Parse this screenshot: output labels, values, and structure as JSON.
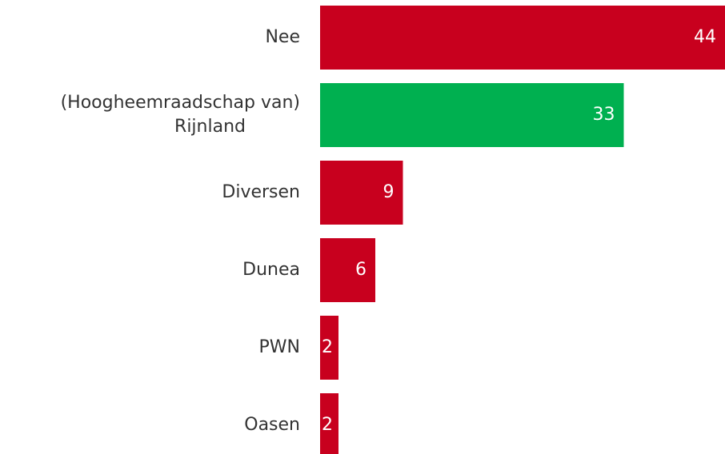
{
  "chart_data": {
    "type": "hbar",
    "categories": [
      "Nee",
      "(Hoogheemraadschap van)\nRijnland",
      "Diversen",
      "Dunea",
      "PWN",
      "Oasen"
    ],
    "values": [
      44,
      33,
      9,
      6,
      2,
      2
    ],
    "colors": [
      "#c8001e",
      "#00b050",
      "#c8001e",
      "#c8001e",
      "#c8001e",
      "#c8001e"
    ]
  }
}
